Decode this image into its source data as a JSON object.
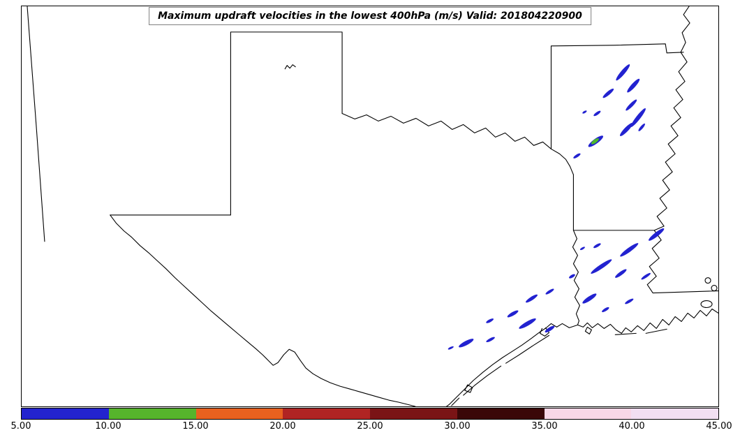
{
  "title": "Maximum updraft velocities in the lowest 400hPa (m/s) Valid: 201804220900",
  "colorbar": {
    "tick_labels": [
      "5.00",
      "10.00",
      "15.00",
      "20.00",
      "25.00",
      "30.00",
      "35.00",
      "40.00",
      "45.00"
    ],
    "colors": [
      "#2323cf",
      "#56b42c",
      "#e8611f",
      "#b02423",
      "#7a1416",
      "#3a0708",
      "#f8d7e7",
      "#f2dff2"
    ],
    "min": 5,
    "max": 45,
    "step": 5,
    "units": "m/s"
  },
  "map": {
    "overlay": {
      "streak_color": "#2222d0",
      "green_spot_color": "#4db82a",
      "streaks": [
        [
          863,
          95,
          30,
          6,
          -50
        ],
        [
          878,
          114,
          26,
          6,
          -48
        ],
        [
          842,
          125,
          20,
          5,
          -40
        ],
        [
          875,
          142,
          22,
          5,
          -45
        ],
        [
          885,
          160,
          34,
          6,
          -52
        ],
        [
          826,
          154,
          12,
          4,
          -35
        ],
        [
          808,
          152,
          7,
          3,
          -30
        ],
        [
          868,
          177,
          26,
          6,
          -46
        ],
        [
          890,
          174,
          14,
          4,
          -50
        ],
        [
          824,
          194,
          26,
          7,
          -36
        ],
        [
          797,
          215,
          12,
          4,
          -33
        ],
        [
          911,
          328,
          28,
          6,
          -38
        ],
        [
          872,
          350,
          32,
          6,
          -36
        ],
        [
          826,
          344,
          12,
          4,
          -30
        ],
        [
          805,
          348,
          8,
          3,
          -30
        ],
        [
          832,
          374,
          36,
          6,
          -34
        ],
        [
          860,
          384,
          20,
          5,
          -36
        ],
        [
          896,
          388,
          16,
          4,
          -34
        ],
        [
          790,
          388,
          10,
          4,
          -30
        ],
        [
          758,
          410,
          14,
          4,
          -32
        ],
        [
          732,
          420,
          20,
          5,
          -33
        ],
        [
          815,
          420,
          24,
          6,
          -34
        ],
        [
          872,
          424,
          14,
          4,
          -30
        ],
        [
          838,
          436,
          12,
          4,
          -32
        ],
        [
          705,
          442,
          18,
          5,
          -30
        ],
        [
          672,
          452,
          12,
          4,
          -28
        ],
        [
          726,
          456,
          28,
          6,
          -30
        ],
        [
          758,
          464,
          16,
          5,
          -32
        ],
        [
          638,
          484,
          24,
          6,
          -28
        ],
        [
          673,
          479,
          14,
          4,
          -28
        ],
        [
          616,
          491,
          9,
          3,
          -25
        ]
      ],
      "green_spots": [
        [
          823,
          194,
          13,
          5,
          -36
        ]
      ]
    }
  },
  "chart_data": {
    "type": "heatmap",
    "title": "Maximum updraft velocities in the lowest 400hPa (m/s) Valid: 201804220900",
    "units": "m/s",
    "valid": "201804220900",
    "colorbar": {
      "ticks": [
        5,
        10,
        15,
        20,
        25,
        30,
        35,
        40,
        45
      ],
      "colors": [
        "#2323cf",
        "#56b42c",
        "#e8611f",
        "#b02423",
        "#7a1416",
        "#3a0708",
        "#f8d7e7",
        "#f2dff2"
      ],
      "orientation": "horizontal",
      "position": "bottom"
    },
    "annotations": "Elongated blue (5-10 m/s) updraft swaths over Arkansas and from southeast Texas into Louisiana; one swath in central Arkansas contains a green (10-15 m/s) core."
  }
}
